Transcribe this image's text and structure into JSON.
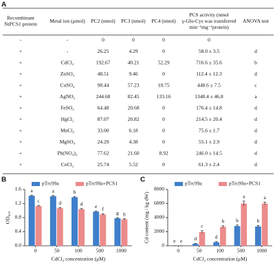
{
  "table": {
    "label": "A",
    "header": [
      "Recombinant NtPCS1 protein",
      "Metal ion (μmol)",
      "PC2 (nmol)",
      "PC3 (nmol)",
      "PC4 (nmol)",
      "PCS activity (nmol γ-Glu-Cys was transferred min⁻¹mg⁻¹protein)",
      "ANOVA test"
    ],
    "rows": [
      [
        "-",
        "-",
        "0",
        "0",
        "0",
        "0",
        null
      ],
      [
        "+",
        "-",
        "26.25",
        "4.29",
        "0",
        "58.0 ± 3.5",
        "d"
      ],
      [
        "+",
        "CdCl₂",
        "192.67",
        "40.21",
        "52.29",
        "716.6 ± 35.6",
        "b"
      ],
      [
        "+",
        "ZnSO₄",
        "48.51",
        "9.46",
        "0",
        "112.4 ± 12.3",
        "d"
      ],
      [
        "+",
        "CuSO₄",
        "98.44",
        "57.23",
        "18.75",
        "448.6 ± 7.5",
        "c"
      ],
      [
        "+",
        "AgNO₃",
        "244.68",
        "82.45",
        "133.16",
        "1348.4 ± 46.8",
        "a"
      ],
      [
        "+",
        "FeSO₄",
        "64.48",
        "20.68",
        "0",
        "176.4 ± 14.8",
        "d"
      ],
      [
        "+",
        "HgCl₂",
        "87.07",
        "20.82",
        "0",
        "214.5 ± 20.4",
        "d"
      ],
      [
        "+",
        "MnCl₂",
        "33.00",
        "6.18",
        "0",
        "75.6 ± 1.7",
        "d"
      ],
      [
        "+",
        "MgSO₄",
        "24.29",
        "4.38",
        "0",
        "55.1 ± 2.9",
        "d"
      ],
      [
        "+",
        "Pb(NO₃)₂",
        "77.62",
        "21.60",
        "8.92",
        "246.0 ± 14.5",
        "d"
      ],
      [
        "+",
        "CoCl₂",
        "25.74",
        "5.52",
        "0",
        "61.3 ± 2.4",
        "d"
      ]
    ]
  },
  "chart_data": [
    {
      "type": "bar",
      "label": "B",
      "x_label": "CdCl₂ concentration (μM)",
      "y_label": "OD₆₀₀",
      "categories": [
        "0",
        "50",
        "100",
        "500",
        "1000"
      ],
      "ylim": [
        0,
        1.6
      ],
      "yticks": [
        {
          "value": 0,
          "label": "0.0"
        },
        0.4,
        0.8,
        1.2,
        1.6
      ],
      "legend": "top",
      "series": [
        {
          "name": "pTrc99a",
          "color": "#3f7fcb",
          "values": [
            1.42,
            1.41,
            1.38,
            0.97,
            0.78
          ],
          "errors": [
            0.02,
            0.02,
            0.02,
            0.02,
            0.02
          ],
          "letters": [
            "a",
            "a",
            "b",
            "e",
            "g"
          ]
        },
        {
          "name": "pTrc99a+PCS1",
          "color": "#ec8b8b",
          "values": [
            1.13,
            1.07,
            1.04,
            0.89,
            0.75
          ],
          "errors": [
            0.02,
            0.02,
            0.02,
            0.02,
            0.02
          ],
          "letters": [
            "c",
            "d",
            "d",
            "f",
            "h"
          ]
        }
      ]
    },
    {
      "type": "bar",
      "label": "C",
      "x_label": "CdCl₂ concentration (μM)",
      "y_label": "Cd content (mg / kg dW)",
      "categories": [
        "0",
        "50",
        "100",
        "500",
        "1000"
      ],
      "ylim": [
        0,
        8000
      ],
      "yticks": [
        0,
        2000,
        4000,
        6000,
        8000
      ],
      "legend": "top",
      "series": [
        {
          "name": "pTrc99a",
          "color": "#3f7fcb",
          "values": [
            0,
            280,
            500,
            2800,
            2750
          ],
          "errors": [
            0,
            60,
            100,
            150,
            150
          ],
          "letters": [
            "e",
            "d",
            "d",
            "b",
            "b"
          ]
        },
        {
          "name": "pTrc99a+PCS1",
          "color": "#ec8b8b",
          "values": [
            0,
            1950,
            2700,
            6000,
            6000
          ],
          "errors": [
            0,
            200,
            150,
            350,
            200
          ],
          "letters": [
            "e",
            "c",
            "b",
            "a",
            "a"
          ]
        }
      ]
    }
  ]
}
